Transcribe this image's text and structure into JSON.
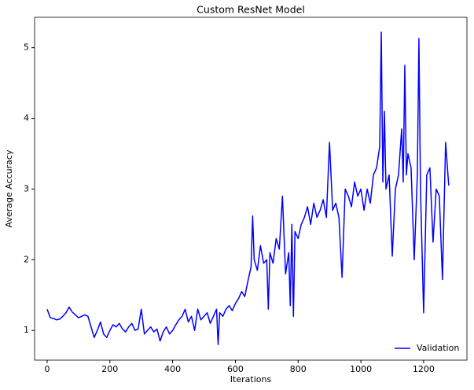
{
  "chart_data": {
    "type": "line",
    "title": "Custom ResNet Model",
    "x_label": "Iterations",
    "y_label": "Average Accuracy",
    "x": [
      0,
      10,
      20,
      30,
      40,
      50,
      60,
      70,
      80,
      90,
      100,
      110,
      120,
      130,
      140,
      150,
      160,
      170,
      180,
      190,
      200,
      210,
      220,
      230,
      240,
      250,
      260,
      270,
      280,
      290,
      300,
      310,
      320,
      330,
      340,
      350,
      360,
      370,
      380,
      390,
      400,
      410,
      420,
      430,
      440,
      450,
      460,
      470,
      480,
      490,
      500,
      510,
      520,
      530,
      540,
      545,
      550,
      560,
      570,
      580,
      590,
      600,
      610,
      620,
      630,
      640,
      650,
      655,
      660,
      670,
      680,
      690,
      700,
      705,
      710,
      720,
      730,
      740,
      750,
      760,
      770,
      775,
      780,
      785,
      790,
      800,
      810,
      820,
      830,
      840,
      850,
      860,
      870,
      880,
      890,
      900,
      910,
      920,
      930,
      940,
      950,
      960,
      970,
      980,
      990,
      1000,
      1010,
      1020,
      1030,
      1040,
      1050,
      1060,
      1065,
      1070,
      1075,
      1080,
      1090,
      1100,
      1110,
      1120,
      1130,
      1135,
      1140,
      1145,
      1150,
      1160,
      1170,
      1180,
      1185,
      1190,
      1200,
      1210,
      1220,
      1230,
      1240,
      1250,
      1260,
      1270,
      1280
    ],
    "series": [
      {
        "name": "Validation",
        "color": "#0000ff",
        "values": [
          1.3,
          1.18,
          1.17,
          1.15,
          1.16,
          1.2,
          1.25,
          1.33,
          1.26,
          1.22,
          1.18,
          1.2,
          1.22,
          1.2,
          1.05,
          0.9,
          1.0,
          1.12,
          0.95,
          0.9,
          1.0,
          1.08,
          1.05,
          1.1,
          1.02,
          0.98,
          1.05,
          1.1,
          1.0,
          1.02,
          1.3,
          0.95,
          1.0,
          1.05,
          0.98,
          1.02,
          0.85,
          0.98,
          1.05,
          0.95,
          1.0,
          1.08,
          1.15,
          1.2,
          1.3,
          1.12,
          1.2,
          1.0,
          1.3,
          1.15,
          1.2,
          1.25,
          1.1,
          1.2,
          1.3,
          0.8,
          1.25,
          1.2,
          1.3,
          1.35,
          1.28,
          1.38,
          1.45,
          1.55,
          1.48,
          1.7,
          1.9,
          2.62,
          2.0,
          1.85,
          2.2,
          1.95,
          2.0,
          1.3,
          2.1,
          1.95,
          2.3,
          2.15,
          2.9,
          1.8,
          2.1,
          1.35,
          2.5,
          1.2,
          2.4,
          2.3,
          2.5,
          2.6,
          2.75,
          2.5,
          2.8,
          2.6,
          2.7,
          2.85,
          2.6,
          3.66,
          2.7,
          2.8,
          2.6,
          1.75,
          3.0,
          2.9,
          2.75,
          3.1,
          2.9,
          3.0,
          2.7,
          3.0,
          2.8,
          3.2,
          3.3,
          3.6,
          5.22,
          3.1,
          4.1,
          3.0,
          3.2,
          2.05,
          3.0,
          3.2,
          3.85,
          3.1,
          4.75,
          3.2,
          3.5,
          3.3,
          2.0,
          3.2,
          5.13,
          3.0,
          1.25,
          3.2,
          3.3,
          2.25,
          3.0,
          2.9,
          1.72,
          3.66,
          3.05
        ]
      }
    ],
    "xlim": [
      -40,
      1338
    ],
    "ylim": [
      0.58,
      5.43
    ],
    "xticks": [
      0,
      200,
      400,
      600,
      800,
      1000,
      1200
    ],
    "yticks": [
      1,
      2,
      3,
      4,
      5
    ],
    "legend": "lower right"
  }
}
